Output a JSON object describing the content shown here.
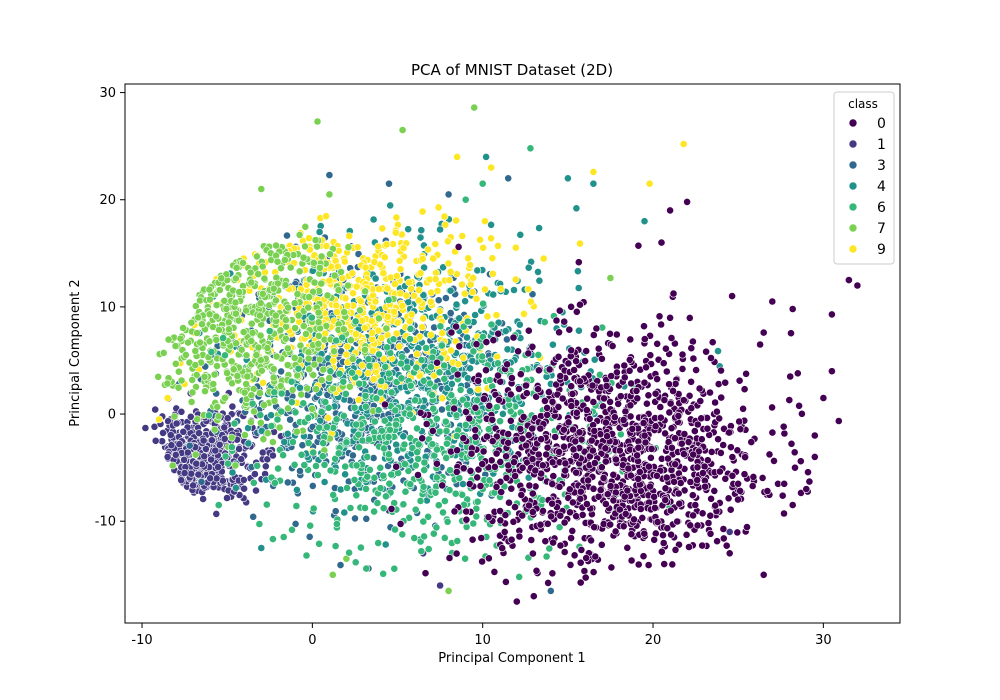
{
  "chart_data": {
    "type": "scatter",
    "title": "PCA of MNIST Dataset (2D)",
    "xlabel": "Principal Component 1",
    "ylabel": "Principal Component 2",
    "xlim": [
      -11,
      34.5
    ],
    "ylim": [
      -19.5,
      30.8
    ],
    "x_ticks": [
      -10,
      0,
      10,
      20,
      30
    ],
    "y_ticks": [
      -10,
      0,
      10,
      20,
      30
    ],
    "grid": false,
    "legend": {
      "title": "class",
      "placement": "top-right",
      "entries": [
        {
          "label": "0",
          "color": "#440154"
        },
        {
          "label": "1",
          "color": "#443983"
        },
        {
          "label": "3",
          "color": "#31688e"
        },
        {
          "label": "4",
          "color": "#21918c"
        },
        {
          "label": "6",
          "color": "#35b779"
        },
        {
          "label": "7",
          "color": "#7ad151"
        },
        {
          "label": "9",
          "color": "#fde725"
        }
      ]
    },
    "series": [
      {
        "name": "0",
        "color": "#440154",
        "center": [
          17.5,
          -4
        ],
        "spread": [
          4.5,
          5.5
        ],
        "points": [
          [
            32,
            12
          ],
          [
            31.5,
            12.5
          ],
          [
            30.5,
            9.3
          ],
          [
            30.5,
            4
          ],
          [
            30,
            1.5
          ],
          [
            29.5,
            -2
          ],
          [
            29.5,
            -4
          ],
          [
            29,
            -7
          ],
          [
            28.2,
            9.8
          ],
          [
            26.5,
            -15
          ],
          [
            12,
            -17.5
          ],
          [
            13,
            -17
          ],
          [
            24.5,
            -13
          ],
          [
            27,
            10.5
          ],
          [
            22,
            19.8
          ],
          [
            21,
            19
          ],
          [
            20.5,
            16
          ],
          [
            26.5,
            7.6
          ],
          [
            28,
            1.3
          ],
          [
            28.5,
            3.8
          ]
        ]
      },
      {
        "name": "1",
        "color": "#443983",
        "center": [
          -6.5,
          -4
        ],
        "spread": [
          1.6,
          2.0
        ],
        "points": [
          [
            -9.8,
            -1.3
          ],
          [
            -9.2,
            -2.5
          ],
          [
            -8.5,
            -4
          ],
          [
            -7.5,
            -5.5
          ],
          [
            -6,
            -6
          ],
          [
            -5,
            -3
          ],
          [
            4.5,
            -9
          ],
          [
            6.5,
            -13
          ],
          [
            7.5,
            -16
          ],
          [
            24.5,
            -11
          ]
        ]
      },
      {
        "name": "3",
        "color": "#31688e",
        "center": [
          3.0,
          2.5
        ],
        "spread": [
          4.0,
          5.0
        ],
        "points": [
          [
            1.0,
            22.3
          ],
          [
            4.5,
            21.5
          ],
          [
            8.0,
            20.5
          ],
          [
            14,
            -16.5
          ],
          [
            11.5,
            22.0
          ]
        ]
      },
      {
        "name": "4",
        "color": "#21918c",
        "center": [
          6.0,
          4.0
        ],
        "spread": [
          5.0,
          5.5
        ],
        "points": [
          [
            10.2,
            24.0
          ],
          [
            15.0,
            22.0
          ],
          [
            16.5,
            21.5
          ],
          [
            15.5,
            19.2
          ],
          [
            19.5,
            18.0
          ],
          [
            -3,
            -12.5
          ]
        ]
      },
      {
        "name": "6",
        "color": "#35b779",
        "center": [
          7.0,
          -3.0
        ],
        "spread": [
          5.0,
          5.5
        ],
        "points": [
          [
            12.8,
            24.8
          ],
          [
            10,
            21.5
          ],
          [
            9,
            20.0
          ],
          [
            -5.5,
            -8.5
          ]
        ]
      },
      {
        "name": "7",
        "color": "#7ad151",
        "center": [
          -4.0,
          9.0
        ],
        "spread": [
          3.2,
          5.0
        ],
        "points": [
          [
            9.5,
            28.6
          ],
          [
            0.3,
            27.3
          ],
          [
            5.3,
            26.5
          ],
          [
            1,
            20.5
          ],
          [
            -3,
            21
          ],
          [
            17.5,
            12.7
          ],
          [
            2,
            -13.5
          ],
          [
            1.2,
            -15
          ],
          [
            8,
            -16.5
          ]
        ]
      },
      {
        "name": "9",
        "color": "#fde725",
        "center": [
          2.5,
          10.5
        ],
        "spread": [
          4.0,
          4.5
        ],
        "points": [
          [
            21.8,
            25.2
          ],
          [
            16.5,
            22.6
          ],
          [
            19.8,
            21.5
          ],
          [
            8.5,
            24
          ],
          [
            10.5,
            23
          ],
          [
            -9,
            -0.5
          ],
          [
            -8.5,
            1.5
          ],
          [
            0,
            -3.5
          ],
          [
            -7.5,
            2.8
          ]
        ]
      }
    ]
  }
}
